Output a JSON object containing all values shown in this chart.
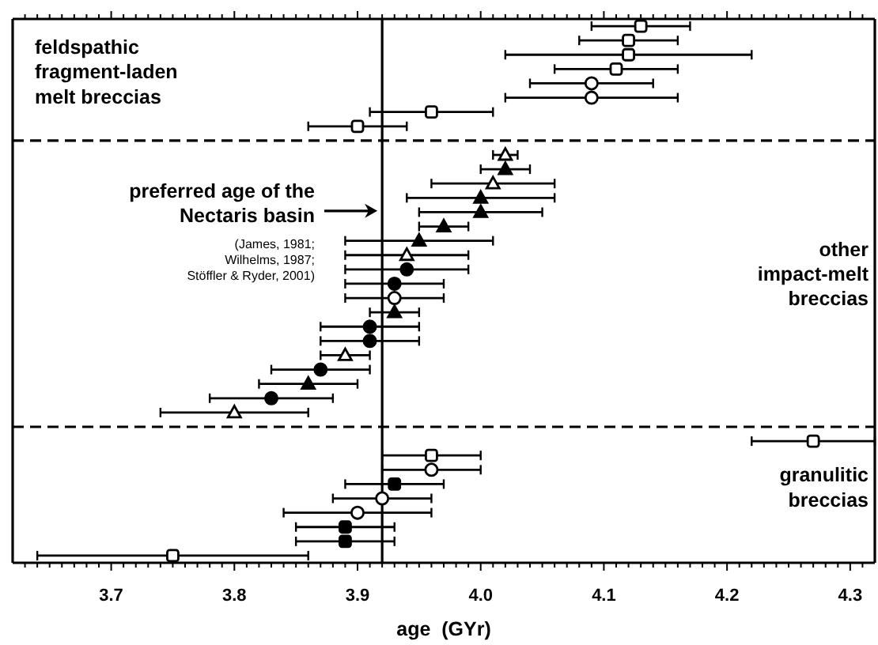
{
  "chart_data": {
    "type": "scatter",
    "orientation": "horizontal",
    "xlabel": "age  (GYr)",
    "annotations": [
      "feldspathic\nfragment-laden\nmelt breccias",
      "preferred age of the\nNectaris basin",
      "(James, 1981;\nWilhelms, 1987;\nStöffler & Ryder, 2001)",
      "other\nimpact-melt\nbreccias",
      "granulitic\nbreccias"
    ],
    "categories": [
      null,
      null,
      null,
      null,
      null,
      null,
      null,
      null,
      null,
      null,
      null,
      null,
      null,
      null,
      null,
      null,
      null,
      null,
      null,
      null,
      null,
      null,
      null,
      null,
      null,
      null,
      null,
      null,
      null,
      null,
      null,
      null,
      null,
      null,
      null,
      null,
      null,
      null
    ],
    "xlim": [
      3.62,
      4.32
    ],
    "xticks": [
      {
        "value": 3.63,
        "label": null
      },
      {
        "value": 3.64,
        "label": null
      },
      {
        "value": 3.65,
        "label": null
      },
      {
        "value": 3.66,
        "label": null
      },
      {
        "value": 3.67,
        "label": null
      },
      {
        "value": 3.68,
        "label": null
      },
      {
        "value": 3.69,
        "label": null
      },
      {
        "value": 3.7,
        "label": "3.7"
      },
      {
        "value": 3.71,
        "label": null
      },
      {
        "value": 3.72,
        "label": null
      },
      {
        "value": 3.73,
        "label": null
      },
      {
        "value": 3.74,
        "label": null
      },
      {
        "value": 3.75,
        "label": null
      },
      {
        "value": 3.76,
        "label": null
      },
      {
        "value": 3.77,
        "label": null
      },
      {
        "value": 3.78,
        "label": null
      },
      {
        "value": 3.79,
        "label": null
      },
      {
        "value": 3.8,
        "label": "3.8"
      },
      {
        "value": 3.81,
        "label": null
      },
      {
        "value": 3.82,
        "label": null
      },
      {
        "value": 3.83,
        "label": null
      },
      {
        "value": 3.84,
        "label": null
      },
      {
        "value": 3.85,
        "label": null
      },
      {
        "value": 3.86,
        "label": null
      },
      {
        "value": 3.87,
        "label": null
      },
      {
        "value": 3.88,
        "label": null
      },
      {
        "value": 3.89,
        "label": null
      },
      {
        "value": 3.9,
        "label": "3.9"
      },
      {
        "value": 3.91,
        "label": null
      },
      {
        "value": 3.92,
        "label": null
      },
      {
        "value": 3.93,
        "label": null
      },
      {
        "value": 3.94,
        "label": null
      },
      {
        "value": 3.95,
        "label": null
      },
      {
        "value": 3.96,
        "label": null
      },
      {
        "value": 3.97,
        "label": null
      },
      {
        "value": 3.98,
        "label": null
      },
      {
        "value": 3.99,
        "label": null
      },
      {
        "value": 4,
        "label": "4.0"
      },
      {
        "value": 4.01,
        "label": null
      },
      {
        "value": 4.02,
        "label": null
      },
      {
        "value": 4.03,
        "label": null
      },
      {
        "value": 4.04,
        "label": null
      },
      {
        "value": 4.05,
        "label": null
      },
      {
        "value": 4.06,
        "label": null
      },
      {
        "value": 4.07,
        "label": null
      },
      {
        "value": 4.08,
        "label": null
      },
      {
        "value": 4.09,
        "label": null
      },
      {
        "value": 4.1,
        "label": "4.1"
      },
      {
        "value": 4.11,
        "label": null
      },
      {
        "value": 4.12,
        "label": null
      },
      {
        "value": 4.13,
        "label": null
      },
      {
        "value": 4.14,
        "label": null
      },
      {
        "value": 4.15,
        "label": null
      },
      {
        "value": 4.16,
        "label": null
      },
      {
        "value": 4.17,
        "label": null
      },
      {
        "value": 4.18,
        "label": null
      },
      {
        "value": 4.19,
        "label": null
      },
      {
        "value": 4.2,
        "label": "4.2"
      },
      {
        "value": 4.21,
        "label": null
      },
      {
        "value": 4.22,
        "label": null
      },
      {
        "value": 4.23,
        "label": null
      },
      {
        "value": 4.24,
        "label": null
      },
      {
        "value": 4.25,
        "label": null
      },
      {
        "value": 4.26,
        "label": null
      },
      {
        "value": 4.27,
        "label": null
      },
      {
        "value": 4.28,
        "label": null
      },
      {
        "value": 4.29,
        "label": null
      },
      {
        "value": 4.3,
        "label": "4.3"
      },
      {
        "value": 4.31,
        "label": null
      }
    ],
    "ref_lines": [
      {
        "axis": "x",
        "value": 3.92
      }
    ],
    "series": [
      {
        "color": "#ffffff",
        "marker": "square",
        "values": [
          4.13,
          4.12,
          4.12,
          4.11,
          null,
          null,
          3.96,
          3.9,
          null,
          null,
          null,
          null,
          null,
          null,
          null,
          null,
          null,
          null,
          null,
          null,
          null,
          null,
          null,
          null,
          null,
          null,
          null,
          null,
          null,
          4.27,
          3.96,
          null,
          null,
          null,
          null,
          null,
          null,
          3.75
        ],
        "errors": [
          0.04,
          0.04,
          0.1,
          0.05,
          null,
          null,
          0.05,
          0.04,
          null,
          null,
          null,
          null,
          null,
          null,
          null,
          null,
          null,
          null,
          null,
          null,
          null,
          null,
          null,
          null,
          null,
          null,
          null,
          null,
          null,
          0.05,
          0.04,
          null,
          null,
          null,
          null,
          null,
          null,
          0.11
        ]
      },
      {
        "color": "#ffffff",
        "marker": "circle",
        "values": [
          null,
          null,
          null,
          null,
          4.09,
          4.09,
          null,
          null,
          null,
          null,
          null,
          null,
          null,
          null,
          null,
          null,
          null,
          null,
          null,
          3.93,
          null,
          null,
          null,
          null,
          null,
          null,
          null,
          null,
          null,
          null,
          null,
          3.96,
          null,
          3.92,
          3.9,
          null,
          null,
          null
        ],
        "errors": [
          null,
          null,
          null,
          null,
          0.05,
          0.07,
          null,
          null,
          null,
          null,
          null,
          null,
          null,
          null,
          null,
          null,
          null,
          null,
          null,
          0.04,
          null,
          null,
          null,
          null,
          null,
          null,
          null,
          null,
          null,
          null,
          null,
          0.04,
          null,
          0.04,
          0.06,
          null,
          null,
          null
        ]
      },
      {
        "color": "#ffffff",
        "marker": "triangle",
        "values": [
          null,
          null,
          null,
          null,
          null,
          null,
          null,
          null,
          null,
          4.02,
          null,
          4.01,
          null,
          null,
          null,
          null,
          3.94,
          null,
          null,
          null,
          null,
          null,
          null,
          3.89,
          null,
          null,
          null,
          3.8,
          null,
          null,
          null,
          null,
          null,
          null,
          null,
          null,
          null,
          null
        ],
        "errors": [
          null,
          null,
          null,
          null,
          null,
          null,
          null,
          null,
          null,
          0.01,
          null,
          0.05,
          null,
          null,
          null,
          null,
          0.05,
          null,
          null,
          null,
          null,
          null,
          null,
          0.02,
          null,
          null,
          null,
          0.06,
          null,
          null,
          null,
          null,
          null,
          null,
          null,
          null,
          null,
          null
        ]
      },
      {
        "color": "#000000",
        "marker": "triangle",
        "values": [
          null,
          null,
          null,
          null,
          null,
          null,
          null,
          null,
          null,
          null,
          4.02,
          null,
          4.0,
          4.0,
          3.97,
          3.95,
          null,
          null,
          null,
          null,
          3.93,
          null,
          null,
          null,
          null,
          3.86,
          null,
          null,
          null,
          null,
          null,
          null,
          null,
          null,
          null,
          null,
          null,
          null
        ],
        "errors": [
          null,
          null,
          null,
          null,
          null,
          null,
          null,
          null,
          null,
          null,
          0.02,
          null,
          0.06,
          0.05,
          0.02,
          0.06,
          null,
          null,
          null,
          null,
          0.02,
          null,
          null,
          null,
          null,
          0.04,
          null,
          null,
          null,
          null,
          null,
          null,
          null,
          null,
          null,
          null,
          null,
          null
        ]
      },
      {
        "color": "#000000",
        "marker": "circle",
        "values": [
          null,
          null,
          null,
          null,
          null,
          null,
          null,
          null,
          null,
          null,
          null,
          null,
          null,
          null,
          null,
          null,
          null,
          3.94,
          3.93,
          null,
          null,
          3.91,
          3.91,
          null,
          3.87,
          null,
          3.83,
          null,
          null,
          null,
          null,
          null,
          null,
          null,
          null,
          null,
          null,
          null
        ],
        "errors": [
          null,
          null,
          null,
          null,
          null,
          null,
          null,
          null,
          null,
          null,
          null,
          null,
          null,
          null,
          null,
          null,
          null,
          0.05,
          0.04,
          null,
          null,
          0.04,
          0.04,
          null,
          0.04,
          null,
          0.05,
          null,
          null,
          null,
          null,
          null,
          null,
          null,
          null,
          null,
          null,
          null
        ]
      },
      {
        "color": "#000000",
        "marker": "square",
        "values": [
          null,
          null,
          null,
          null,
          null,
          null,
          null,
          null,
          null,
          null,
          null,
          null,
          null,
          null,
          null,
          null,
          null,
          null,
          null,
          null,
          null,
          null,
          null,
          null,
          null,
          null,
          null,
          null,
          null,
          null,
          null,
          null,
          3.93,
          null,
          null,
          3.89,
          3.89,
          null
        ],
        "errors": [
          null,
          null,
          null,
          null,
          null,
          null,
          null,
          null,
          null,
          null,
          null,
          null,
          null,
          null,
          null,
          null,
          null,
          null,
          null,
          null,
          null,
          null,
          null,
          null,
          null,
          null,
          null,
          null,
          null,
          null,
          null,
          null,
          0.04,
          null,
          null,
          0.04,
          0.04,
          null
        ]
      }
    ]
  }
}
